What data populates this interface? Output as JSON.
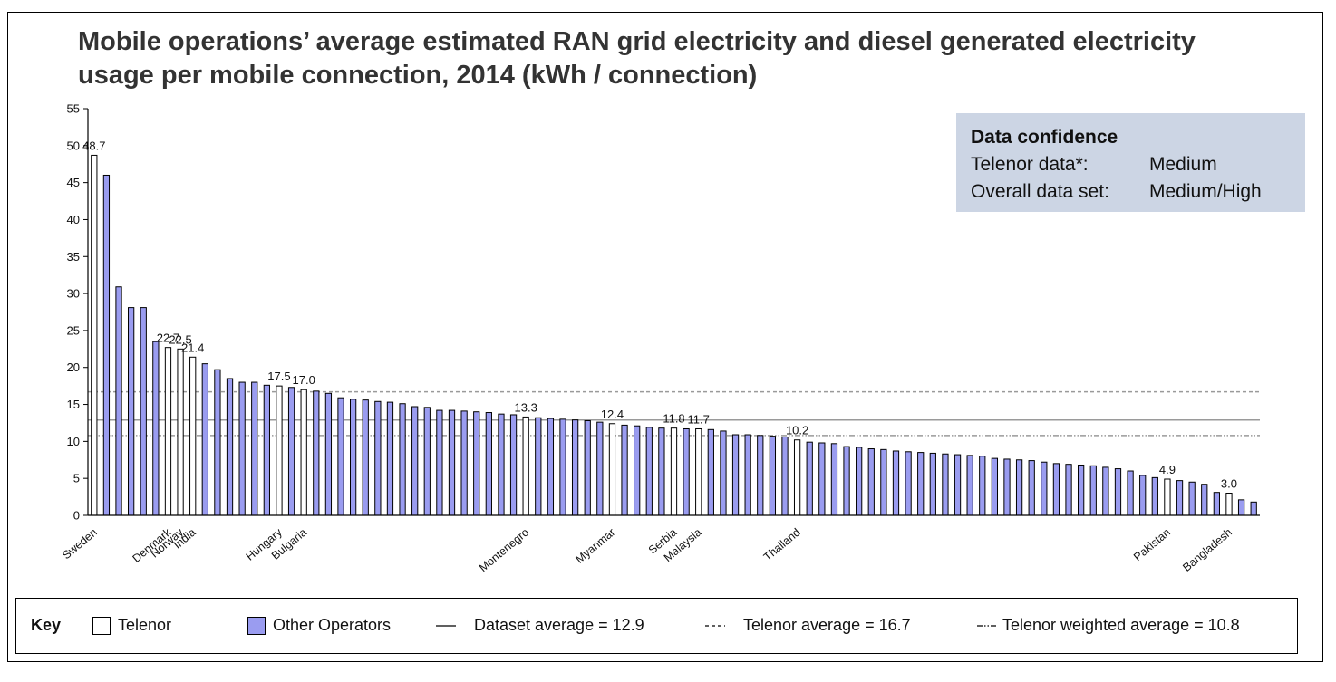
{
  "title": "Mobile operations’ average estimated RAN grid electricity and diesel generated electricity usage per mobile connection, 2014 (kWh / connection)",
  "confidence": {
    "heading": "Data confidence",
    "rows": [
      {
        "label": "Telenor data*:",
        "value": "Medium"
      },
      {
        "label": "Overall data set:",
        "value": "Medium/High"
      }
    ]
  },
  "key": {
    "label": "Key",
    "telenor": "Telenor",
    "other": "Other Operators",
    "dataset_avg": "Dataset average = 12.9",
    "telenor_avg": "Telenor average = 16.7",
    "telenor_weighted": "Telenor weighted average = 10.8"
  },
  "colors": {
    "telenor": "#ffffff",
    "other": "#9a9cf0",
    "outline": "#000000",
    "refline": "#9a9a9a"
  },
  "chart_data": {
    "type": "bar",
    "ylim": [
      0,
      55
    ],
    "yticks": [
      0,
      5,
      10,
      15,
      20,
      25,
      30,
      35,
      40,
      45,
      50,
      55
    ],
    "series": [
      {
        "name": "Telenor",
        "type": "Telenor"
      },
      {
        "name": "Other Operators",
        "type": "Other"
      }
    ],
    "bars": [
      {
        "v": 48.7,
        "t": 1,
        "label": "Sweden",
        "dl": "48.7"
      },
      {
        "v": 46.0,
        "t": 0
      },
      {
        "v": 30.9,
        "t": 0
      },
      {
        "v": 28.1,
        "t": 0
      },
      {
        "v": 28.1,
        "t": 0
      },
      {
        "v": 23.5,
        "t": 0
      },
      {
        "v": 22.7,
        "t": 1,
        "label": "Denmark",
        "dl": "22.7"
      },
      {
        "v": 22.5,
        "t": 1,
        "label": "Norway",
        "dl": "22.5"
      },
      {
        "v": 21.4,
        "t": 1,
        "label": "India",
        "dl": "21.4"
      },
      {
        "v": 20.5,
        "t": 0
      },
      {
        "v": 19.7,
        "t": 0
      },
      {
        "v": 18.5,
        "t": 0
      },
      {
        "v": 18.0,
        "t": 0
      },
      {
        "v": 18.0,
        "t": 0
      },
      {
        "v": 17.6,
        "t": 0
      },
      {
        "v": 17.5,
        "t": 1,
        "label": "Hungary",
        "dl": "17.5"
      },
      {
        "v": 17.3,
        "t": 0
      },
      {
        "v": 17.0,
        "t": 1,
        "label": "Bulgaria",
        "dl": "17.0"
      },
      {
        "v": 16.8,
        "t": 0
      },
      {
        "v": 16.5,
        "t": 0
      },
      {
        "v": 15.9,
        "t": 0
      },
      {
        "v": 15.7,
        "t": 0
      },
      {
        "v": 15.6,
        "t": 0
      },
      {
        "v": 15.4,
        "t": 0
      },
      {
        "v": 15.3,
        "t": 0
      },
      {
        "v": 15.1,
        "t": 0
      },
      {
        "v": 14.7,
        "t": 0
      },
      {
        "v": 14.6,
        "t": 0
      },
      {
        "v": 14.2,
        "t": 0
      },
      {
        "v": 14.2,
        "t": 0
      },
      {
        "v": 14.1,
        "t": 0
      },
      {
        "v": 14.0,
        "t": 0
      },
      {
        "v": 13.9,
        "t": 0
      },
      {
        "v": 13.7,
        "t": 0
      },
      {
        "v": 13.6,
        "t": 0
      },
      {
        "v": 13.3,
        "t": 1,
        "label": "Montenegro",
        "dl": "13.3"
      },
      {
        "v": 13.2,
        "t": 0
      },
      {
        "v": 13.1,
        "t": 0
      },
      {
        "v": 13.0,
        "t": 0
      },
      {
        "v": 12.9,
        "t": 0
      },
      {
        "v": 12.8,
        "t": 0
      },
      {
        "v": 12.6,
        "t": 0
      },
      {
        "v": 12.4,
        "t": 1,
        "label": "Myanmar",
        "dl": "12.4"
      },
      {
        "v": 12.2,
        "t": 0
      },
      {
        "v": 12.1,
        "t": 0
      },
      {
        "v": 11.9,
        "t": 0
      },
      {
        "v": 11.8,
        "t": 0
      },
      {
        "v": 11.8,
        "t": 1,
        "label": "Serbia",
        "dl": "11.8"
      },
      {
        "v": 11.7,
        "t": 0
      },
      {
        "v": 11.7,
        "t": 1,
        "label": "Malaysia",
        "dl": "11.7"
      },
      {
        "v": 11.6,
        "t": 0
      },
      {
        "v": 11.4,
        "t": 0
      },
      {
        "v": 10.9,
        "t": 0
      },
      {
        "v": 10.9,
        "t": 0
      },
      {
        "v": 10.8,
        "t": 0
      },
      {
        "v": 10.7,
        "t": 0
      },
      {
        "v": 10.6,
        "t": 0
      },
      {
        "v": 10.2,
        "t": 1,
        "label": "Thailand",
        "dl": "10.2"
      },
      {
        "v": 9.9,
        "t": 0
      },
      {
        "v": 9.8,
        "t": 0
      },
      {
        "v": 9.7,
        "t": 0
      },
      {
        "v": 9.3,
        "t": 0
      },
      {
        "v": 9.2,
        "t": 0
      },
      {
        "v": 9.0,
        "t": 0
      },
      {
        "v": 8.9,
        "t": 0
      },
      {
        "v": 8.7,
        "t": 0
      },
      {
        "v": 8.6,
        "t": 0
      },
      {
        "v": 8.5,
        "t": 0
      },
      {
        "v": 8.4,
        "t": 0
      },
      {
        "v": 8.3,
        "t": 0
      },
      {
        "v": 8.2,
        "t": 0
      },
      {
        "v": 8.1,
        "t": 0
      },
      {
        "v": 8.0,
        "t": 0
      },
      {
        "v": 7.7,
        "t": 0
      },
      {
        "v": 7.6,
        "t": 0
      },
      {
        "v": 7.5,
        "t": 0
      },
      {
        "v": 7.4,
        "t": 0
      },
      {
        "v": 7.2,
        "t": 0
      },
      {
        "v": 7.0,
        "t": 0
      },
      {
        "v": 6.9,
        "t": 0
      },
      {
        "v": 6.8,
        "t": 0
      },
      {
        "v": 6.7,
        "t": 0
      },
      {
        "v": 6.5,
        "t": 0
      },
      {
        "v": 6.3,
        "t": 0
      },
      {
        "v": 6.0,
        "t": 0
      },
      {
        "v": 5.4,
        "t": 0
      },
      {
        "v": 5.1,
        "t": 0
      },
      {
        "v": 4.9,
        "t": 1,
        "label": "Pakistan",
        "dl": "4.9"
      },
      {
        "v": 4.7,
        "t": 0
      },
      {
        "v": 4.5,
        "t": 0
      },
      {
        "v": 4.2,
        "t": 0
      },
      {
        "v": 3.1,
        "t": 0
      },
      {
        "v": 3.0,
        "t": 1,
        "label": "Bangladesh",
        "dl": "3.0"
      },
      {
        "v": 2.1,
        "t": 0
      },
      {
        "v": 1.8,
        "t": 0
      }
    ],
    "reference_lines": [
      {
        "name": "Dataset average",
        "value": 12.9,
        "style": "solid"
      },
      {
        "name": "Telenor average",
        "value": 16.7,
        "style": "dashed"
      },
      {
        "name": "Telenor weighted average",
        "value": 10.8,
        "style": "dash-dot-dot"
      }
    ],
    "grid": false,
    "legend": "bottom"
  }
}
